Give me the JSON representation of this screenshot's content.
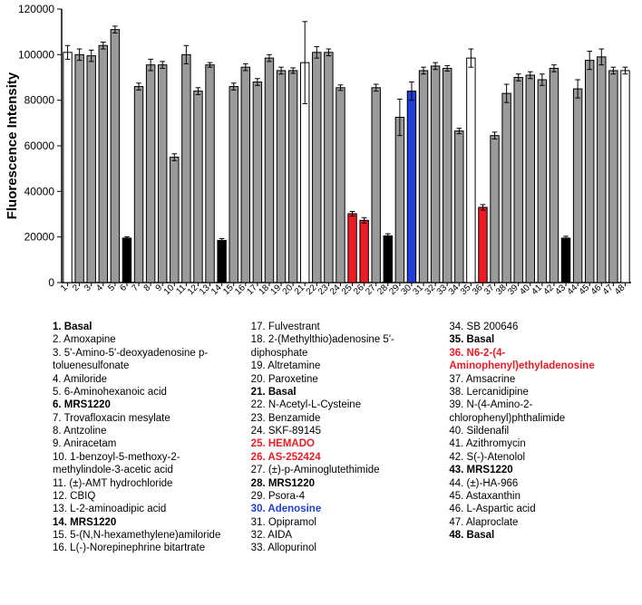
{
  "chart": {
    "type": "bar",
    "ylabel": "Fluorescence Intensity",
    "label_fontsize": 15,
    "ylim": [
      0,
      120000
    ],
    "ytick_step": 20000,
    "background_color": "#ffffff",
    "axis_color": "#000000",
    "bar_border": "#000000",
    "bar_width": 0.72,
    "error_color": "#000000",
    "colors": {
      "basal": "#ffffff",
      "normal": "#9a9a9a",
      "mrs": "#000000",
      "hit": "#ed1c24",
      "aden": "#1f3fd8"
    },
    "bars": [
      {
        "x": 1,
        "v": 101000,
        "e": 3000,
        "c": "basal"
      },
      {
        "x": 2,
        "v": 100000,
        "e": 2500,
        "c": "normal"
      },
      {
        "x": 3,
        "v": 99500,
        "e": 2500,
        "c": "normal"
      },
      {
        "x": 4,
        "v": 104000,
        "e": 1500,
        "c": "normal"
      },
      {
        "x": 5,
        "v": 111000,
        "e": 1500,
        "c": "normal"
      },
      {
        "x": 6,
        "v": 19500,
        "e": 600,
        "c": "mrs"
      },
      {
        "x": 7,
        "v": 86000,
        "e": 1500,
        "c": "normal"
      },
      {
        "x": 8,
        "v": 95500,
        "e": 2500,
        "c": "normal"
      },
      {
        "x": 9,
        "v": 95500,
        "e": 1500,
        "c": "normal"
      },
      {
        "x": 10,
        "v": 55000,
        "e": 1500,
        "c": "normal"
      },
      {
        "x": 11,
        "v": 100000,
        "e": 4000,
        "c": "normal"
      },
      {
        "x": 12,
        "v": 84000,
        "e": 1500,
        "c": "normal"
      },
      {
        "x": 13,
        "v": 95500,
        "e": 1000,
        "c": "normal"
      },
      {
        "x": 14,
        "v": 18500,
        "e": 800,
        "c": "mrs"
      },
      {
        "x": 15,
        "v": 86000,
        "e": 1500,
        "c": "normal"
      },
      {
        "x": 16,
        "v": 94500,
        "e": 1500,
        "c": "normal"
      },
      {
        "x": 17,
        "v": 88000,
        "e": 1500,
        "c": "normal"
      },
      {
        "x": 18,
        "v": 98500,
        "e": 1500,
        "c": "normal"
      },
      {
        "x": 19,
        "v": 93000,
        "e": 1500,
        "c": "normal"
      },
      {
        "x": 20,
        "v": 93000,
        "e": 1200,
        "c": "normal"
      },
      {
        "x": 21,
        "v": 96500,
        "e": 18000,
        "c": "basal"
      },
      {
        "x": 22,
        "v": 101000,
        "e": 2500,
        "c": "normal"
      },
      {
        "x": 23,
        "v": 101000,
        "e": 1500,
        "c": "normal"
      },
      {
        "x": 24,
        "v": 85500,
        "e": 1200,
        "c": "normal"
      },
      {
        "x": 25,
        "v": 30200,
        "e": 1000,
        "c": "hit"
      },
      {
        "x": 26,
        "v": 27300,
        "e": 1200,
        "c": "hit"
      },
      {
        "x": 27,
        "v": 85500,
        "e": 1500,
        "c": "normal"
      },
      {
        "x": 28,
        "v": 20500,
        "e": 900,
        "c": "mrs"
      },
      {
        "x": 29,
        "v": 72500,
        "e": 8000,
        "c": "normal"
      },
      {
        "x": 30,
        "v": 84000,
        "e": 4000,
        "c": "aden"
      },
      {
        "x": 31,
        "v": 93000,
        "e": 1500,
        "c": "normal"
      },
      {
        "x": 32,
        "v": 95000,
        "e": 1500,
        "c": "normal"
      },
      {
        "x": 33,
        "v": 94000,
        "e": 1200,
        "c": "normal"
      },
      {
        "x": 34,
        "v": 66500,
        "e": 1200,
        "c": "normal"
      },
      {
        "x": 35,
        "v": 98500,
        "e": 4000,
        "c": "basal"
      },
      {
        "x": 36,
        "v": 33000,
        "e": 1200,
        "c": "hit"
      },
      {
        "x": 37,
        "v": 64500,
        "e": 1500,
        "c": "normal"
      },
      {
        "x": 38,
        "v": 83000,
        "e": 4000,
        "c": "normal"
      },
      {
        "x": 39,
        "v": 90000,
        "e": 1500,
        "c": "normal"
      },
      {
        "x": 40,
        "v": 91000,
        "e": 1500,
        "c": "normal"
      },
      {
        "x": 41,
        "v": 89000,
        "e": 2500,
        "c": "normal"
      },
      {
        "x": 42,
        "v": 94000,
        "e": 1500,
        "c": "normal"
      },
      {
        "x": 43,
        "v": 19500,
        "e": 800,
        "c": "mrs"
      },
      {
        "x": 44,
        "v": 85000,
        "e": 4000,
        "c": "normal"
      },
      {
        "x": 45,
        "v": 97500,
        "e": 4000,
        "c": "normal"
      },
      {
        "x": 46,
        "v": 99000,
        "e": 3500,
        "c": "normal"
      },
      {
        "x": 47,
        "v": 93000,
        "e": 1500,
        "c": "normal"
      },
      {
        "x": 48,
        "v": 93000,
        "e": 1500,
        "c": "basal"
      }
    ]
  },
  "legend": [
    {
      "n": 1,
      "t": "Basal",
      "s": "b"
    },
    {
      "n": 2,
      "t": "Amoxapine"
    },
    {
      "n": 3,
      "t": "5'-Amino-5'-deoxyadenosine p-toluenesulfonate"
    },
    {
      "n": 4,
      "t": "Amiloride"
    },
    {
      "n": 5,
      "t": "6-Aminohexanoic acid"
    },
    {
      "n": 6,
      "t": "MRS1220",
      "s": "b"
    },
    {
      "n": 7,
      "t": "Trovafloxacin mesylate"
    },
    {
      "n": 8,
      "t": "Antzoline"
    },
    {
      "n": 9,
      "t": "Aniracetam"
    },
    {
      "n": 10,
      "t": "1-benzoyl-5-methoxy-2-methylindole-3-acetic acid"
    },
    {
      "n": 11,
      "t": "(±)-AMT hydrochloride"
    },
    {
      "n": 12,
      "t": "CBIQ"
    },
    {
      "n": 13,
      "t": "L-2-aminoadipic acid"
    },
    {
      "n": 14,
      "t": "MRS1220",
      "s": "b"
    },
    {
      "n": 15,
      "t": "5-(N,N-hexamethylene)amiloride"
    },
    {
      "n": 16,
      "t": "L(-)-Norepinephrine bitartrate"
    },
    {
      "n": 17,
      "t": "Fulvestrant"
    },
    {
      "n": 18,
      "t": "2-(Methylthio)adenosine 5'-diphosphate"
    },
    {
      "n": 19,
      "t": "Altretamine"
    },
    {
      "n": 20,
      "t": "Paroxetine"
    },
    {
      "n": 21,
      "t": "Basal",
      "s": "b"
    },
    {
      "n": 22,
      "t": "N-Acetyl-L-Cysteine"
    },
    {
      "n": 23,
      "t": "Benzamide"
    },
    {
      "n": 24,
      "t": "SKF-89145"
    },
    {
      "n": 25,
      "t": "HEMADO",
      "s": "r"
    },
    {
      "n": 26,
      "t": "AS-252424",
      "s": "r"
    },
    {
      "n": 27,
      "t": "(±)-p-Aminoglutethimide"
    },
    {
      "n": 28,
      "t": "MRS1220",
      "s": "b"
    },
    {
      "n": 29,
      "t": "Psora-4"
    },
    {
      "n": 30,
      "t": "Adenosine",
      "s": "bl"
    },
    {
      "n": 31,
      "t": "Opipramol"
    },
    {
      "n": 32,
      "t": "AIDA"
    },
    {
      "n": 33,
      "t": "Allopurinol"
    },
    {
      "n": 34,
      "t": "SB 200646"
    },
    {
      "n": 35,
      "t": "Basal",
      "s": "b"
    },
    {
      "n": 36,
      "t": "N6-2-(4-Aminophenyl)ethyladenosine",
      "s": "r"
    },
    {
      "n": 37,
      "t": "Amsacrine"
    },
    {
      "n": 38,
      "t": "Lercanidipine"
    },
    {
      "n": 39,
      "t": "N-(4-Amino-2-chlorophenyl)phthalimide"
    },
    {
      "n": 40,
      "t": "Sildenafil"
    },
    {
      "n": 41,
      "t": "Azithromycin"
    },
    {
      "n": 42,
      "t": "S(-)-Atenolol"
    },
    {
      "n": 43,
      "t": "MRS1220",
      "s": "b"
    },
    {
      "n": 44,
      "t": "(±)-HA-966"
    },
    {
      "n": 45,
      "t": "Astaxanthin"
    },
    {
      "n": 46,
      "t": "L-Aspartic acid"
    },
    {
      "n": 47,
      "t": "Alaproclate"
    },
    {
      "n": 48,
      "t": "Basal",
      "s": "b"
    }
  ],
  "legend_columns": [
    [
      1,
      16
    ],
    [
      17,
      33
    ],
    [
      34,
      48
    ]
  ]
}
